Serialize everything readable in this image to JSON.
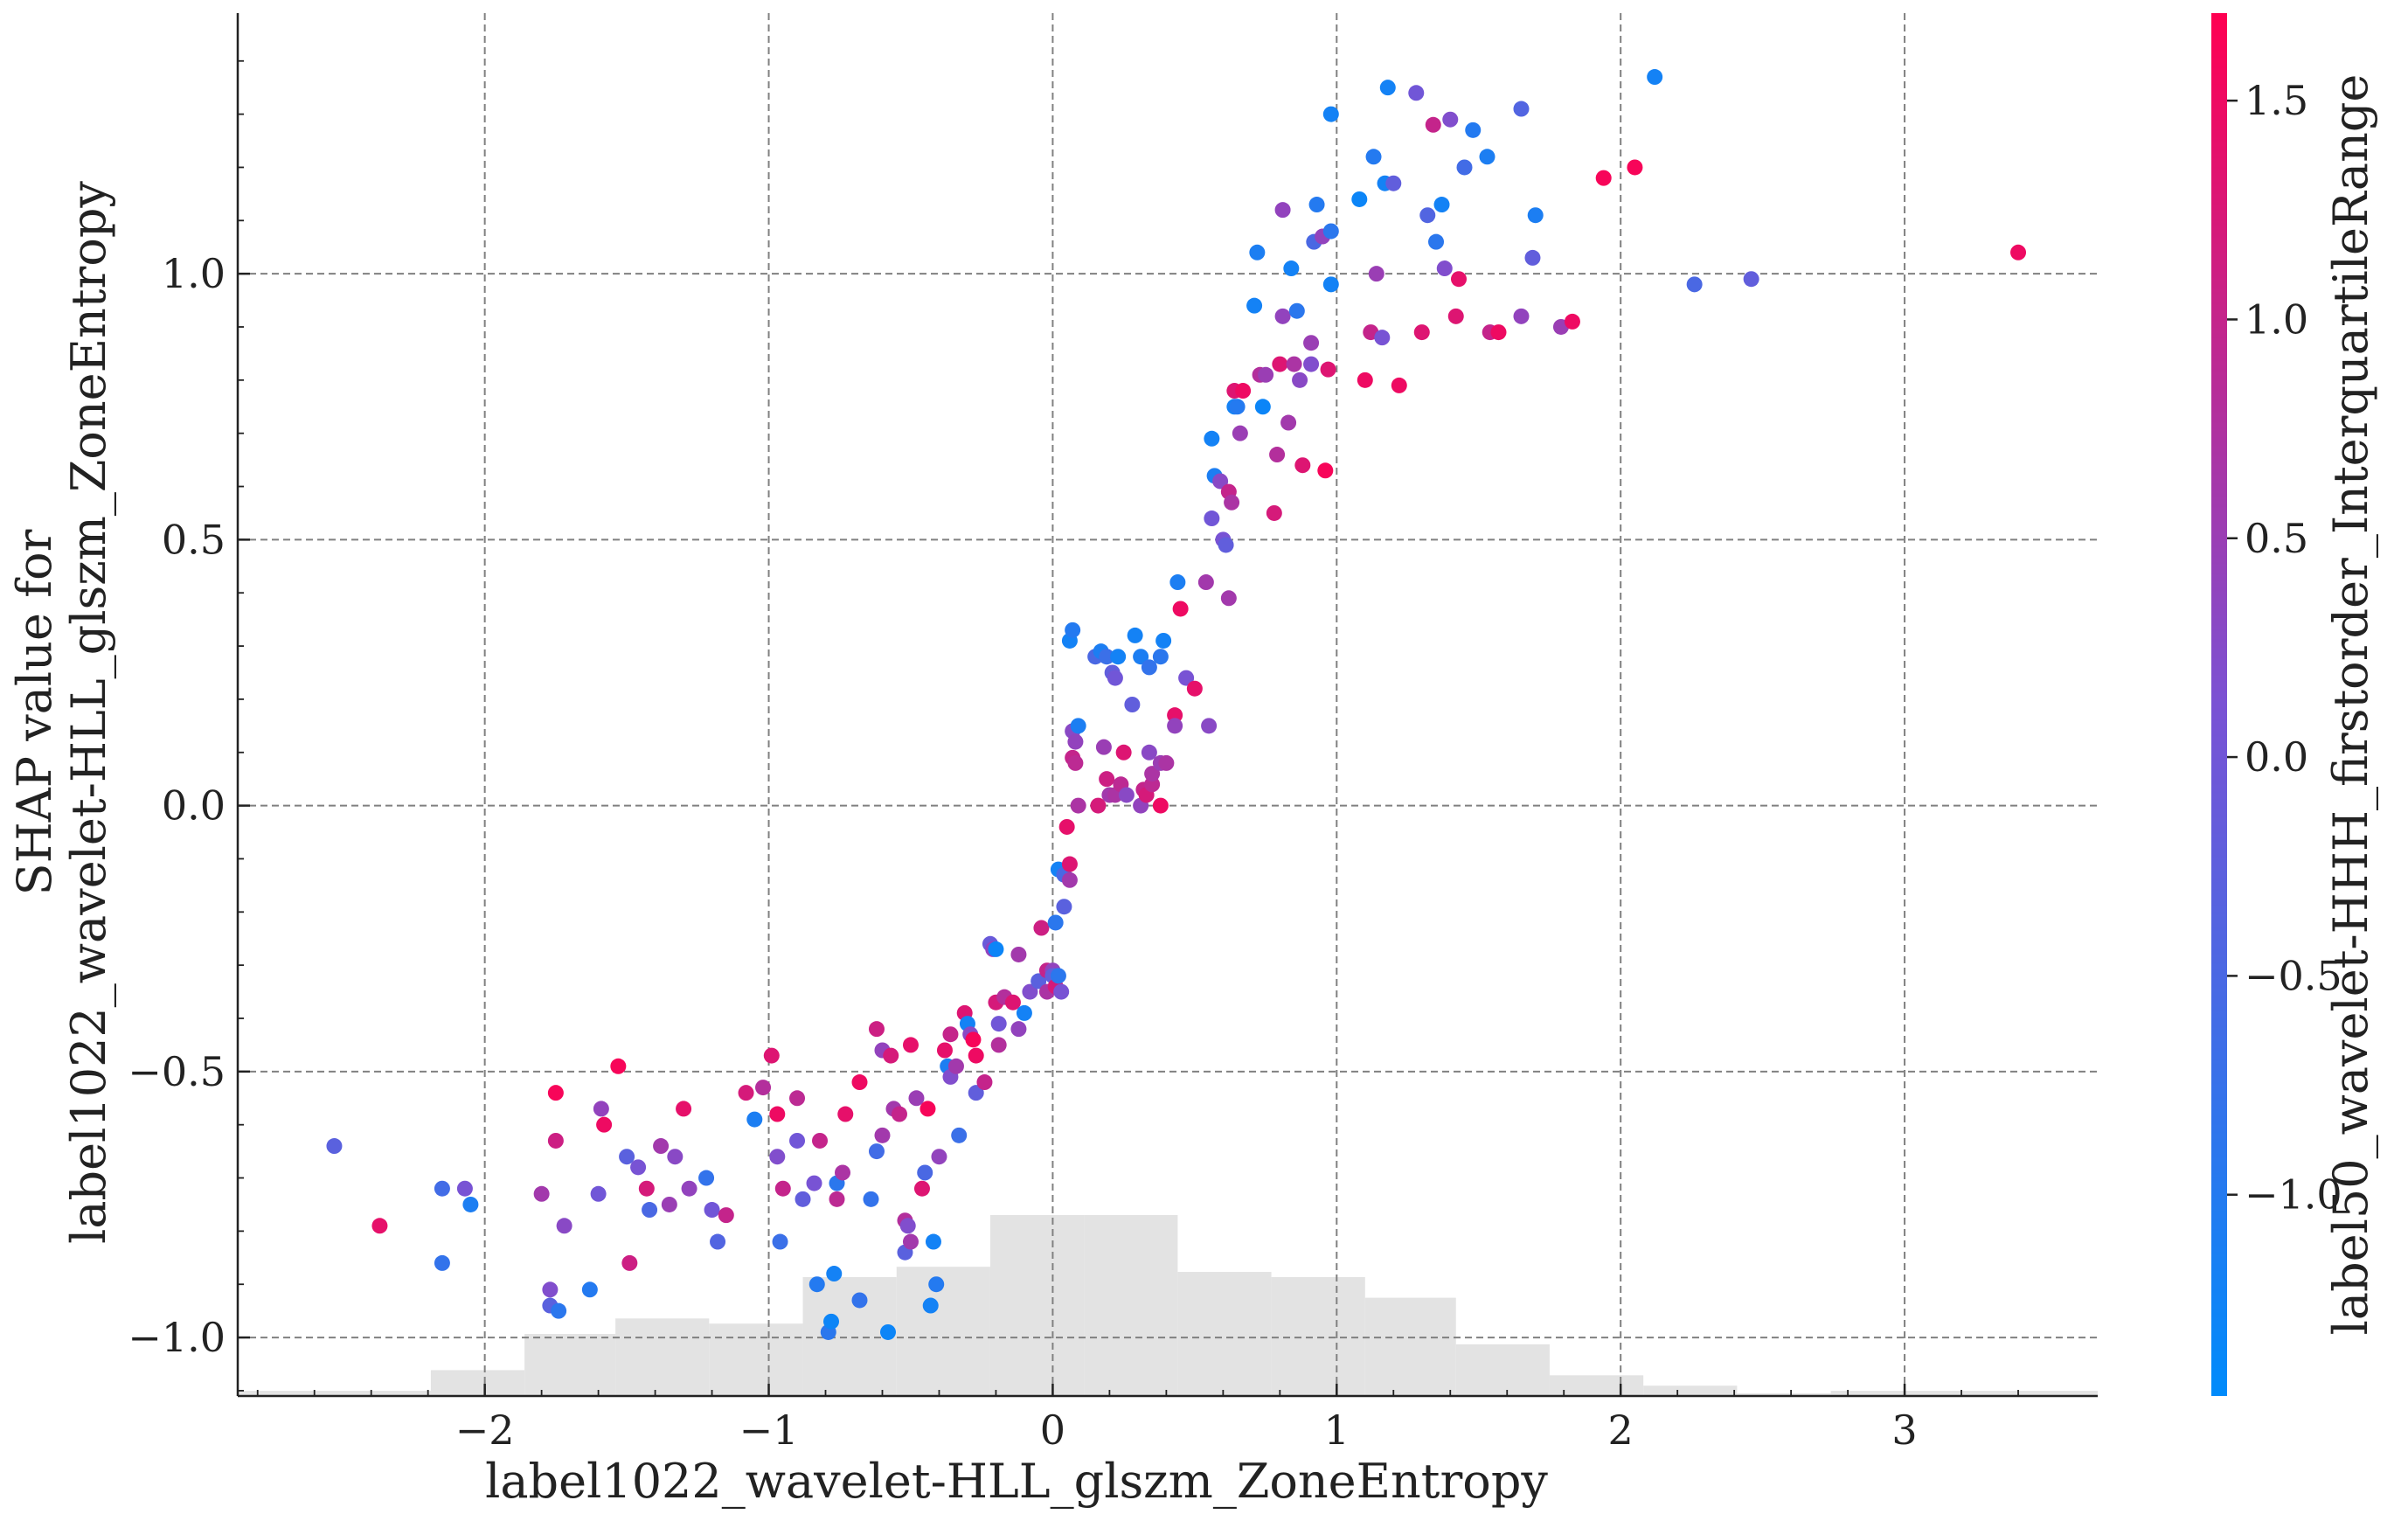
{
  "chart_data": {
    "type": "scatter",
    "xlabel": "label1022_wavelet-HLL_glszm_ZoneEntropy",
    "ylabel": "SHAP value for\nlabel1022_wavelet-HLL_glszm_ZoneEntropy",
    "xlim": [
      -2.87,
      3.68
    ],
    "ylim": [
      -1.11,
      1.49
    ],
    "xticks": [
      -2,
      -1,
      0,
      1,
      2,
      3
    ],
    "xtick_labels": [
      "−2",
      "−1",
      "0",
      "1",
      "2",
      "3"
    ],
    "yticks": [
      -1.0,
      -0.5,
      0.0,
      0.5,
      1.0
    ],
    "ytick_labels": [
      "−1.0",
      "−0.5",
      "0.0",
      "0.5",
      "1.0"
    ],
    "grid": true,
    "colorbar": {
      "label": "label50_wavelet-HHH_firstorder_InterquartileRange",
      "range": [
        -1.46,
        1.7
      ],
      "ticks": [
        -1.0,
        -0.5,
        0.0,
        0.5,
        1.0,
        1.5
      ],
      "tick_labels": [
        "−1.0",
        "−0.5",
        "0.0",
        "0.5",
        "1.0",
        "1.5"
      ],
      "cmap_low": "#008bfb",
      "cmap_mid": "#7a52d4",
      "cmap_high": "#ff0051"
    },
    "histogram": {
      "bin_edges": [
        -2.87,
        -2.19,
        -1.86,
        -1.54,
        -1.21,
        -0.88,
        -0.55,
        -0.22,
        0.11,
        0.44,
        0.77,
        1.1,
        1.42,
        1.75,
        2.08,
        2.41,
        2.74,
        3.68
      ],
      "heights": [
        0.01,
        0.05,
        0.12,
        0.15,
        0.14,
        0.23,
        0.25,
        0.35,
        0.35,
        0.24,
        0.23,
        0.19,
        0.1,
        0.04,
        0.02,
        0.005,
        0.01
      ]
    },
    "points": [
      [
        -2.53,
        -0.64,
        -0.3
      ],
      [
        -2.37,
        -0.79,
        1.4
      ],
      [
        -2.15,
        -0.72,
        -0.6
      ],
      [
        -2.15,
        -0.86,
        -0.8
      ],
      [
        -2.07,
        -0.72,
        0.1
      ],
      [
        -2.05,
        -0.75,
        -1.1
      ],
      [
        -1.8,
        -0.73,
        0.6
      ],
      [
        -1.77,
        -0.91,
        0.2
      ],
      [
        -1.77,
        -0.94,
        -0.3
      ],
      [
        -1.74,
        -0.95,
        -0.9
      ],
      [
        -1.75,
        -0.54,
        1.6
      ],
      [
        -1.75,
        -0.63,
        1.1
      ],
      [
        -1.72,
        -0.79,
        0.3
      ],
      [
        -1.63,
        -0.91,
        -1.0
      ],
      [
        -1.6,
        -0.73,
        0.0
      ],
      [
        -1.59,
        -0.57,
        0.4
      ],
      [
        -1.58,
        -0.6,
        1.5
      ],
      [
        -1.53,
        -0.49,
        1.6
      ],
      [
        -1.5,
        -0.66,
        -0.3
      ],
      [
        -1.49,
        -0.86,
        1.1
      ],
      [
        -1.46,
        -0.68,
        0.1
      ],
      [
        -1.43,
        -0.72,
        1.2
      ],
      [
        -1.42,
        -0.76,
        -0.5
      ],
      [
        -1.38,
        -0.64,
        0.6
      ],
      [
        -1.35,
        -0.75,
        0.5
      ],
      [
        -1.33,
        -0.66,
        0.3
      ],
      [
        -1.3,
        -0.57,
        1.4
      ],
      [
        -1.28,
        -0.72,
        0.4
      ],
      [
        -1.22,
        -0.7,
        -0.8
      ],
      [
        -1.2,
        -0.76,
        0.0
      ],
      [
        -1.18,
        -0.82,
        -0.4
      ],
      [
        -1.15,
        -0.77,
        1.0
      ],
      [
        -1.08,
        -0.54,
        1.2
      ],
      [
        -1.05,
        -0.59,
        -1.1
      ],
      [
        -1.02,
        -0.53,
        0.8
      ],
      [
        -0.99,
        -0.47,
        1.3
      ],
      [
        -0.97,
        -0.58,
        1.5
      ],
      [
        -0.97,
        -0.66,
        0.2
      ],
      [
        -0.96,
        -0.82,
        -0.7
      ],
      [
        -0.95,
        -0.72,
        1.0
      ],
      [
        -0.9,
        -0.55,
        0.9
      ],
      [
        -0.9,
        -0.63,
        0.0
      ],
      [
        -0.88,
        -0.74,
        -0.2
      ],
      [
        -0.84,
        -0.71,
        0.1
      ],
      [
        -0.83,
        -0.9,
        -1.0
      ],
      [
        -0.82,
        -0.63,
        1.0
      ],
      [
        -0.79,
        -0.99,
        -0.9
      ],
      [
        -0.78,
        -0.97,
        -1.3
      ],
      [
        -0.77,
        -0.88,
        -1.2
      ],
      [
        -0.76,
        -0.71,
        -0.9
      ],
      [
        -0.76,
        -0.74,
        0.9
      ],
      [
        -0.74,
        -0.69,
        0.7
      ],
      [
        -0.73,
        -0.58,
        1.4
      ],
      [
        -0.68,
        -0.93,
        -0.8
      ],
      [
        -0.68,
        -0.52,
        1.5
      ],
      [
        -0.64,
        -0.74,
        -0.8
      ],
      [
        -0.62,
        -0.42,
        1.1
      ],
      [
        -0.62,
        -0.65,
        -0.6
      ],
      [
        -0.6,
        -0.62,
        0.6
      ],
      [
        -0.6,
        -0.46,
        0.4
      ],
      [
        -0.58,
        -0.99,
        -1.3
      ],
      [
        -0.57,
        -0.47,
        1.2
      ],
      [
        -0.56,
        -0.57,
        0.6
      ],
      [
        -0.54,
        -0.58,
        1.0
      ],
      [
        -0.52,
        -0.78,
        0.8
      ],
      [
        -0.52,
        -0.84,
        -0.3
      ],
      [
        -0.51,
        -0.79,
        0.2
      ],
      [
        -0.5,
        -0.82,
        0.6
      ],
      [
        -0.5,
        -0.45,
        1.4
      ],
      [
        -0.48,
        -0.55,
        0.5
      ],
      [
        -0.46,
        -0.72,
        1.3
      ],
      [
        -0.45,
        -0.69,
        -0.5
      ],
      [
        -0.44,
        -0.57,
        1.6
      ],
      [
        -0.43,
        -0.94,
        -1.2
      ],
      [
        -0.42,
        -0.82,
        -1.2
      ],
      [
        -0.41,
        -0.9,
        -1.0
      ],
      [
        -0.4,
        -0.66,
        0.4
      ],
      [
        -0.38,
        -0.46,
        1.4
      ],
      [
        -0.37,
        -0.49,
        -1.1
      ],
      [
        -0.36,
        -0.43,
        1.0
      ],
      [
        -0.36,
        -0.51,
        0.2
      ],
      [
        -0.34,
        -0.49,
        0.6
      ],
      [
        -0.33,
        -0.62,
        -0.7
      ],
      [
        -0.31,
        -0.39,
        1.3
      ],
      [
        -0.3,
        -0.41,
        -1.2
      ],
      [
        -0.29,
        -0.43,
        0.3
      ],
      [
        -0.28,
        -0.44,
        1.6
      ],
      [
        -0.27,
        -0.47,
        1.5
      ],
      [
        -0.27,
        -0.54,
        -0.2
      ],
      [
        -0.24,
        -0.52,
        1.0
      ],
      [
        -0.22,
        -0.26,
        -0.1
      ],
      [
        -0.21,
        -0.27,
        0.4
      ],
      [
        -0.2,
        -0.27,
        -1.3
      ],
      [
        -0.2,
        -0.37,
        1.2
      ],
      [
        -0.19,
        -0.41,
        0.0
      ],
      [
        -0.19,
        -0.45,
        0.8
      ],
      [
        -0.17,
        -0.36,
        0.8
      ],
      [
        -0.14,
        -0.37,
        1.3
      ],
      [
        -0.12,
        -0.28,
        0.6
      ],
      [
        -0.12,
        -0.42,
        0.4
      ],
      [
        -0.1,
        -0.39,
        -1.2
      ],
      [
        -0.08,
        -0.35,
        0.2
      ],
      [
        -0.05,
        -0.33,
        -0.3
      ],
      [
        -0.04,
        -0.23,
        1.1
      ],
      [
        -0.02,
        -0.31,
        1.0
      ],
      [
        -0.02,
        -0.35,
        0.7
      ],
      [
        0.0,
        -0.31,
        0.4
      ],
      [
        0.0,
        -0.32,
        -0.2
      ],
      [
        0.01,
        -0.22,
        -0.9
      ],
      [
        0.01,
        -0.34,
        1.2
      ],
      [
        0.02,
        -0.12,
        -1.2
      ],
      [
        0.02,
        -0.32,
        -0.9
      ],
      [
        0.03,
        -0.35,
        0.1
      ],
      [
        0.04,
        -0.13,
        -0.5
      ],
      [
        0.04,
        -0.19,
        -0.3
      ],
      [
        0.05,
        -0.04,
        1.4
      ],
      [
        0.06,
        -0.11,
        1.3
      ],
      [
        0.06,
        -0.14,
        0.6
      ],
      [
        0.06,
        0.31,
        -1.2
      ],
      [
        0.07,
        0.14,
        0.3
      ],
      [
        0.07,
        0.33,
        -1.0
      ],
      [
        0.07,
        0.09,
        1.0
      ],
      [
        0.08,
        0.12,
        0.4
      ],
      [
        0.08,
        0.08,
        0.9
      ],
      [
        0.09,
        0.15,
        -1.1
      ],
      [
        0.09,
        0.0,
        0.7
      ],
      [
        0.15,
        0.28,
        -0.5
      ],
      [
        0.16,
        0.0,
        1.2
      ],
      [
        0.17,
        0.29,
        -1.1
      ],
      [
        0.18,
        0.11,
        0.5
      ],
      [
        0.19,
        0.05,
        1.1
      ],
      [
        0.19,
        0.28,
        -0.7
      ],
      [
        0.2,
        0.02,
        0.6
      ],
      [
        0.21,
        0.25,
        -0.2
      ],
      [
        0.22,
        0.24,
        0.0
      ],
      [
        0.22,
        0.02,
        0.7
      ],
      [
        0.23,
        0.28,
        -1.2
      ],
      [
        0.24,
        0.04,
        0.9
      ],
      [
        0.25,
        0.1,
        1.3
      ],
      [
        0.26,
        0.02,
        0.3
      ],
      [
        0.28,
        0.19,
        -0.2
      ],
      [
        0.29,
        0.32,
        -1.2
      ],
      [
        0.31,
        0.0,
        0.4
      ],
      [
        0.31,
        0.28,
        -1.1
      ],
      [
        0.32,
        0.03,
        1.0
      ],
      [
        0.33,
        0.02,
        1.2
      ],
      [
        0.34,
        0.1,
        0.3
      ],
      [
        0.34,
        0.26,
        -0.8
      ],
      [
        0.35,
        0.04,
        0.9
      ],
      [
        0.35,
        0.06,
        0.7
      ],
      [
        0.38,
        0.08,
        0.5
      ],
      [
        0.38,
        0.28,
        -0.9
      ],
      [
        0.38,
        0.0,
        1.5
      ],
      [
        0.39,
        0.31,
        -1.2
      ],
      [
        0.4,
        0.08,
        0.7
      ],
      [
        0.43,
        0.17,
        1.4
      ],
      [
        0.43,
        0.15,
        0.4
      ],
      [
        0.44,
        0.42,
        -1.1
      ],
      [
        0.45,
        0.37,
        1.5
      ],
      [
        0.47,
        0.24,
        0.1
      ],
      [
        0.5,
        0.22,
        1.4
      ],
      [
        0.54,
        0.42,
        0.6
      ],
      [
        0.55,
        0.15,
        0.3
      ],
      [
        0.56,
        0.54,
        0.0
      ],
      [
        0.57,
        0.62,
        -1.1
      ],
      [
        0.56,
        0.69,
        -1.2
      ],
      [
        0.59,
        0.61,
        0.3
      ],
      [
        0.6,
        0.5,
        0.1
      ],
      [
        0.61,
        0.49,
        -0.2
      ],
      [
        0.62,
        0.59,
        1.0
      ],
      [
        0.62,
        0.39,
        0.6
      ],
      [
        0.63,
        0.57,
        0.7
      ],
      [
        0.64,
        0.78,
        1.3
      ],
      [
        0.64,
        0.75,
        -1.2
      ],
      [
        0.65,
        0.75,
        -1.0
      ],
      [
        0.66,
        0.7,
        0.5
      ],
      [
        0.67,
        0.78,
        1.5
      ],
      [
        0.71,
        0.94,
        -1.2
      ],
      [
        0.72,
        1.04,
        -1.1
      ],
      [
        0.73,
        0.81,
        0.8
      ],
      [
        0.74,
        0.75,
        -1.3
      ],
      [
        0.75,
        0.81,
        0.5
      ],
      [
        0.78,
        0.55,
        1.2
      ],
      [
        0.79,
        0.66,
        0.8
      ],
      [
        0.8,
        0.83,
        1.3
      ],
      [
        0.81,
        0.92,
        0.4
      ],
      [
        0.81,
        1.12,
        0.4
      ],
      [
        0.83,
        0.72,
        0.6
      ],
      [
        0.84,
        1.01,
        -1.2
      ],
      [
        0.85,
        0.83,
        0.7
      ],
      [
        0.86,
        0.93,
        -0.9
      ],
      [
        0.87,
        0.8,
        0.3
      ],
      [
        0.88,
        0.64,
        1.3
      ],
      [
        0.91,
        0.83,
        0.2
      ],
      [
        0.91,
        0.87,
        0.5
      ],
      [
        0.92,
        1.06,
        -0.5
      ],
      [
        0.93,
        1.13,
        -1.0
      ],
      [
        0.95,
        1.07,
        0.4
      ],
      [
        0.96,
        0.63,
        1.6
      ],
      [
        0.97,
        0.82,
        1.3
      ],
      [
        0.98,
        0.98,
        -1.2
      ],
      [
        0.98,
        1.08,
        -0.9
      ],
      [
        0.98,
        1.3,
        -1.2
      ],
      [
        1.08,
        1.14,
        -1.3
      ],
      [
        1.1,
        0.8,
        1.5
      ],
      [
        1.12,
        0.89,
        1.0
      ],
      [
        1.13,
        1.22,
        -1.0
      ],
      [
        1.14,
        1.0,
        0.5
      ],
      [
        1.16,
        0.88,
        0.1
      ],
      [
        1.17,
        1.17,
        -1.2
      ],
      [
        1.18,
        1.35,
        -1.2
      ],
      [
        1.2,
        1.17,
        -0.2
      ],
      [
        1.22,
        0.79,
        1.5
      ],
      [
        1.28,
        1.34,
        0.0
      ],
      [
        1.3,
        0.89,
        1.3
      ],
      [
        1.32,
        1.11,
        -0.4
      ],
      [
        1.34,
        1.28,
        1.0
      ],
      [
        1.35,
        1.06,
        -0.9
      ],
      [
        1.37,
        1.13,
        -1.2
      ],
      [
        1.38,
        1.01,
        0.2
      ],
      [
        1.4,
        1.29,
        0.2
      ],
      [
        1.42,
        0.92,
        1.3
      ],
      [
        1.43,
        0.99,
        1.4
      ],
      [
        1.45,
        1.2,
        -0.6
      ],
      [
        1.48,
        1.27,
        -1.0
      ],
      [
        1.53,
        1.22,
        -1.1
      ],
      [
        1.54,
        0.89,
        1.0
      ],
      [
        1.57,
        0.89,
        1.5
      ],
      [
        1.65,
        1.31,
        -0.4
      ],
      [
        1.65,
        0.92,
        0.4
      ],
      [
        1.69,
        1.03,
        -0.2
      ],
      [
        1.7,
        1.11,
        -1.1
      ],
      [
        1.79,
        0.9,
        0.5
      ],
      [
        1.83,
        0.91,
        1.5
      ],
      [
        1.94,
        1.18,
        1.6
      ],
      [
        2.05,
        1.2,
        1.6
      ],
      [
        2.12,
        1.37,
        -1.2
      ],
      [
        2.26,
        0.98,
        -0.5
      ],
      [
        2.46,
        0.99,
        -0.2
      ],
      [
        3.4,
        1.04,
        1.5
      ]
    ]
  }
}
